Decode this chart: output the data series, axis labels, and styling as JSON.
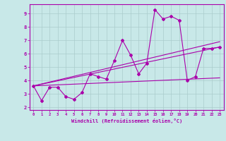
{
  "title": "",
  "xlabel": "Windchill (Refroidissement éolien,°C)",
  "bg_color": "#c8e8e8",
  "line_color": "#aa00aa",
  "grid_color": "#aacccc",
  "xlim": [
    -0.5,
    23.5
  ],
  "ylim": [
    1.8,
    9.7
  ],
  "xticks": [
    0,
    1,
    2,
    3,
    4,
    5,
    6,
    7,
    8,
    9,
    10,
    11,
    12,
    13,
    14,
    15,
    16,
    17,
    18,
    19,
    20,
    21,
    22,
    23
  ],
  "yticks": [
    2,
    3,
    4,
    5,
    6,
    7,
    8,
    9
  ],
  "series": [
    [
      0,
      3.6
    ],
    [
      1,
      2.5
    ],
    [
      2,
      3.5
    ],
    [
      3,
      3.5
    ],
    [
      4,
      2.8
    ],
    [
      5,
      2.6
    ],
    [
      6,
      3.1
    ],
    [
      7,
      4.5
    ],
    [
      8,
      4.3
    ],
    [
      9,
      4.1
    ],
    [
      10,
      5.5
    ],
    [
      11,
      7.0
    ],
    [
      12,
      5.9
    ],
    [
      13,
      4.5
    ],
    [
      14,
      5.3
    ],
    [
      15,
      9.3
    ],
    [
      16,
      8.6
    ],
    [
      17,
      8.8
    ],
    [
      18,
      8.5
    ],
    [
      19,
      4.0
    ],
    [
      20,
      4.3
    ],
    [
      21,
      6.4
    ],
    [
      22,
      6.4
    ],
    [
      23,
      6.5
    ]
  ],
  "trend_lines": [
    {
      "x": [
        0,
        23
      ],
      "y": [
        3.6,
        6.9
      ]
    },
    {
      "x": [
        0,
        23
      ],
      "y": [
        3.6,
        4.2
      ]
    },
    {
      "x": [
        0,
        23
      ],
      "y": [
        3.6,
        6.5
      ]
    }
  ]
}
